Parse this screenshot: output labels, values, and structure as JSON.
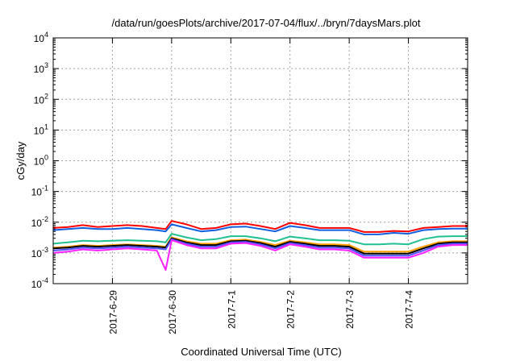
{
  "chart_data": {
    "type": "line",
    "title": "/data/run/goesPlots/archive/2017-07-04/flux/../bryn/7daysMars.plot",
    "xlabel": "Coordinated Universal Time (UTC)",
    "ylabel": "cGy/day",
    "yscale": "log",
    "ylim": [
      0.0001,
      10000
    ],
    "xlim_days": [
      0,
      7
    ],
    "grid": true,
    "legend": "none",
    "x_ticks": [
      {
        "label": "2017-6-29",
        "day": 1
      },
      {
        "label": "2017-6-30",
        "day": 2
      },
      {
        "label": "2017-7-1",
        "day": 3
      },
      {
        "label": "2017-7-2",
        "day": 4
      },
      {
        "label": "2017-7-3",
        "day": 5
      },
      {
        "label": "2017-7-4",
        "day": 6
      }
    ],
    "y_ticks": [
      {
        "base": "10",
        "exp": "-4",
        "value": 0.0001
      },
      {
        "base": "10",
        "exp": "-3",
        "value": 0.001
      },
      {
        "base": "10",
        "exp": "-2",
        "value": 0.01
      },
      {
        "base": "10",
        "exp": "-1",
        "value": 0.1
      },
      {
        "base": "10",
        "exp": "0",
        "value": 1
      },
      {
        "base": "10",
        "exp": "1",
        "value": 10
      },
      {
        "base": "10",
        "exp": "2",
        "value": 100
      },
      {
        "base": "10",
        "exp": "3",
        "value": 1000
      },
      {
        "base": "10",
        "exp": "4",
        "value": 10000
      }
    ],
    "x": [
      0,
      0.25,
      0.5,
      0.75,
      1.0,
      1.25,
      1.5,
      1.75,
      1.9,
      2.0,
      2.25,
      2.5,
      2.75,
      3.0,
      3.25,
      3.5,
      3.75,
      4.0,
      4.25,
      4.5,
      4.75,
      5.0,
      5.25,
      5.5,
      5.75,
      6.0,
      6.25,
      6.5,
      6.75,
      7.0
    ],
    "series": [
      {
        "color": "#ff0000",
        "values": [
          0.0065,
          0.007,
          0.008,
          0.007,
          0.0075,
          0.008,
          0.0075,
          0.0065,
          0.006,
          0.011,
          0.0085,
          0.006,
          0.0065,
          0.0085,
          0.009,
          0.0075,
          0.006,
          0.0095,
          0.008,
          0.0065,
          0.0065,
          0.0065,
          0.0048,
          0.0048,
          0.0052,
          0.005,
          0.0065,
          0.007,
          0.0075,
          0.0075
        ]
      },
      {
        "color": "#1060e0",
        "values": [
          0.0055,
          0.006,
          0.0065,
          0.006,
          0.006,
          0.0065,
          0.006,
          0.0055,
          0.005,
          0.0085,
          0.0065,
          0.005,
          0.0055,
          0.007,
          0.0072,
          0.006,
          0.005,
          0.0075,
          0.0065,
          0.0055,
          0.0055,
          0.0055,
          0.004,
          0.004,
          0.0045,
          0.0042,
          0.0055,
          0.006,
          0.0062,
          0.0062
        ]
      },
      {
        "color": "#20c090",
        "values": [
          0.002,
          0.0022,
          0.0025,
          0.0024,
          0.0025,
          0.0026,
          0.0025,
          0.0024,
          0.0022,
          0.0042,
          0.0032,
          0.0026,
          0.0028,
          0.0035,
          0.0035,
          0.003,
          0.0024,
          0.0034,
          0.003,
          0.0026,
          0.0026,
          0.0025,
          0.0019,
          0.0019,
          0.002,
          0.0019,
          0.0028,
          0.0034,
          0.0035,
          0.0035
        ]
      },
      {
        "color": "#ffa000",
        "values": [
          0.0015,
          0.0016,
          0.0018,
          0.0017,
          0.0018,
          0.0019,
          0.0018,
          0.0017,
          0.0016,
          0.0032,
          0.0024,
          0.002,
          0.002,
          0.0026,
          0.0027,
          0.0023,
          0.0018,
          0.0025,
          0.0022,
          0.0019,
          0.0019,
          0.0018,
          0.0011,
          0.0011,
          0.0011,
          0.0011,
          0.0016,
          0.0022,
          0.0024,
          0.0024
        ]
      },
      {
        "color": "#000000",
        "values": [
          0.0014,
          0.0015,
          0.0017,
          0.0016,
          0.0017,
          0.0018,
          0.0017,
          0.0016,
          0.0015,
          0.003,
          0.0022,
          0.0018,
          0.0018,
          0.0024,
          0.0025,
          0.0021,
          0.0016,
          0.0023,
          0.002,
          0.0017,
          0.0017,
          0.0016,
          0.00095,
          0.00095,
          0.00095,
          0.00095,
          0.0014,
          0.002,
          0.0022,
          0.0022
        ]
      },
      {
        "color": "#5050ff",
        "values": [
          0.0012,
          0.0013,
          0.0015,
          0.0014,
          0.0015,
          0.0016,
          0.0015,
          0.0014,
          0.0013,
          0.0028,
          0.002,
          0.0016,
          0.0016,
          0.0022,
          0.0023,
          0.0019,
          0.0014,
          0.0021,
          0.0018,
          0.0015,
          0.0015,
          0.0014,
          0.00082,
          0.00082,
          0.00082,
          0.00082,
          0.0012,
          0.0018,
          0.002,
          0.002
        ]
      },
      {
        "color": "#ff20ff",
        "values": [
          0.001,
          0.0011,
          0.0013,
          0.0012,
          0.0013,
          0.0014,
          0.0013,
          0.0012,
          0.00028,
          0.0026,
          0.0018,
          0.0014,
          0.0014,
          0.002,
          0.0021,
          0.0017,
          0.0012,
          0.0019,
          0.0016,
          0.0013,
          0.0013,
          0.0012,
          0.0007,
          0.0007,
          0.0007,
          0.0007,
          0.001,
          0.0016,
          0.0018,
          0.0018
        ]
      }
    ]
  }
}
